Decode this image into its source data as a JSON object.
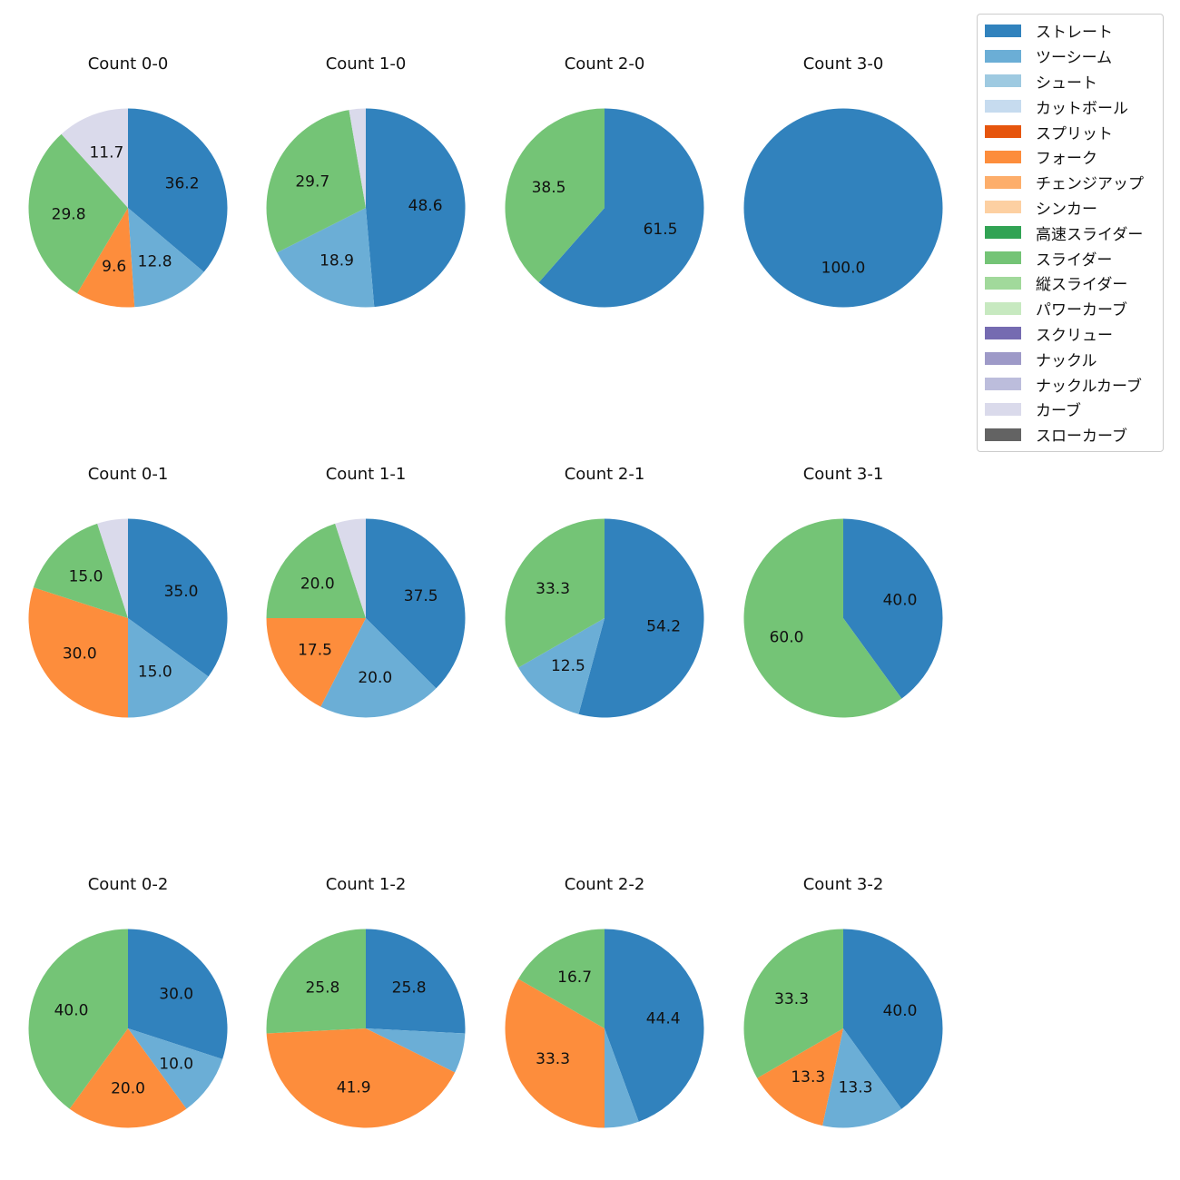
{
  "legend": {
    "items": [
      {
        "label": "ストレート",
        "color": "#3182bd"
      },
      {
        "label": "ツーシーム",
        "color": "#6baed6"
      },
      {
        "label": "シュート",
        "color": "#9ecae1"
      },
      {
        "label": "カットボール",
        "color": "#c6dbef"
      },
      {
        "label": "スプリット",
        "color": "#e6550d"
      },
      {
        "label": "フォーク",
        "color": "#fd8d3c"
      },
      {
        "label": "チェンジアップ",
        "color": "#fdae6b"
      },
      {
        "label": "シンカー",
        "color": "#fdd0a2"
      },
      {
        "label": "高速スライダー",
        "color": "#31a354"
      },
      {
        "label": "スライダー",
        "color": "#74c476"
      },
      {
        "label": "縦スライダー",
        "color": "#a1d99b"
      },
      {
        "label": "パワーカーブ",
        "color": "#c7e9c0"
      },
      {
        "label": "スクリュー",
        "color": "#756bb1"
      },
      {
        "label": "ナックル",
        "color": "#9e9ac8"
      },
      {
        "label": "ナックルカーブ",
        "color": "#bcbddc"
      },
      {
        "label": "カーブ",
        "color": "#dadaeb"
      },
      {
        "label": "スローカーブ",
        "color": "#636363"
      }
    ]
  },
  "chart_data": [
    {
      "type": "pie",
      "title": "Count 0-0",
      "slices": [
        {
          "name": "ストレート",
          "value": 36.2,
          "label": "36.2"
        },
        {
          "name": "ツーシーム",
          "value": 12.8,
          "label": "12.8"
        },
        {
          "name": "フォーク",
          "value": 9.6,
          "label": "9.6"
        },
        {
          "name": "スライダー",
          "value": 29.8,
          "label": "29.8"
        },
        {
          "name": "カーブ",
          "value": 11.7,
          "label": "11.7"
        }
      ]
    },
    {
      "type": "pie",
      "title": "Count 1-0",
      "slices": [
        {
          "name": "ストレート",
          "value": 48.6,
          "label": "48.6"
        },
        {
          "name": "ツーシーム",
          "value": 18.9,
          "label": "18.9"
        },
        {
          "name": "スライダー",
          "value": 29.7,
          "label": "29.7"
        },
        {
          "name": "カーブ",
          "value": 2.7,
          "label": ""
        }
      ]
    },
    {
      "type": "pie",
      "title": "Count 2-0",
      "slices": [
        {
          "name": "ストレート",
          "value": 61.5,
          "label": "61.5"
        },
        {
          "name": "スライダー",
          "value": 38.5,
          "label": "38.5"
        }
      ]
    },
    {
      "type": "pie",
      "title": "Count 3-0",
      "slices": [
        {
          "name": "ストレート",
          "value": 100.0,
          "label": "100.0"
        }
      ]
    },
    {
      "type": "pie",
      "title": "Count 0-1",
      "slices": [
        {
          "name": "ストレート",
          "value": 35.0,
          "label": "35.0"
        },
        {
          "name": "ツーシーム",
          "value": 15.0,
          "label": "15.0"
        },
        {
          "name": "フォーク",
          "value": 30.0,
          "label": "30.0"
        },
        {
          "name": "スライダー",
          "value": 15.0,
          "label": "15.0"
        },
        {
          "name": "カーブ",
          "value": 5.0,
          "label": ""
        }
      ]
    },
    {
      "type": "pie",
      "title": "Count 1-1",
      "slices": [
        {
          "name": "ストレート",
          "value": 37.5,
          "label": "37.5"
        },
        {
          "name": "ツーシーム",
          "value": 20.0,
          "label": "20.0"
        },
        {
          "name": "フォーク",
          "value": 17.5,
          "label": "17.5"
        },
        {
          "name": "スライダー",
          "value": 20.0,
          "label": "20.0"
        },
        {
          "name": "カーブ",
          "value": 5.0,
          "label": ""
        }
      ]
    },
    {
      "type": "pie",
      "title": "Count 2-1",
      "slices": [
        {
          "name": "ストレート",
          "value": 54.2,
          "label": "54.2"
        },
        {
          "name": "ツーシーム",
          "value": 12.5,
          "label": "12.5"
        },
        {
          "name": "スライダー",
          "value": 33.3,
          "label": "33.3"
        }
      ]
    },
    {
      "type": "pie",
      "title": "Count 3-1",
      "slices": [
        {
          "name": "ストレート",
          "value": 40.0,
          "label": "40.0"
        },
        {
          "name": "スライダー",
          "value": 60.0,
          "label": "60.0"
        }
      ]
    },
    {
      "type": "pie",
      "title": "Count 0-2",
      "slices": [
        {
          "name": "ストレート",
          "value": 30.0,
          "label": "30.0"
        },
        {
          "name": "ツーシーム",
          "value": 10.0,
          "label": "10.0"
        },
        {
          "name": "フォーク",
          "value": 20.0,
          "label": "20.0"
        },
        {
          "name": "スライダー",
          "value": 40.0,
          "label": "40.0"
        }
      ]
    },
    {
      "type": "pie",
      "title": "Count 1-2",
      "slices": [
        {
          "name": "ストレート",
          "value": 25.8,
          "label": "25.8"
        },
        {
          "name": "ツーシーム",
          "value": 6.5,
          "label": ""
        },
        {
          "name": "フォーク",
          "value": 41.9,
          "label": "41.9"
        },
        {
          "name": "スライダー",
          "value": 25.8,
          "label": "25.8"
        }
      ]
    },
    {
      "type": "pie",
      "title": "Count 2-2",
      "slices": [
        {
          "name": "ストレート",
          "value": 44.4,
          "label": "44.4"
        },
        {
          "name": "ツーシーム",
          "value": 5.6,
          "label": ""
        },
        {
          "name": "フォーク",
          "value": 33.3,
          "label": "33.3"
        },
        {
          "name": "スライダー",
          "value": 16.7,
          "label": "16.7"
        }
      ]
    },
    {
      "type": "pie",
      "title": "Count 3-2",
      "slices": [
        {
          "name": "ストレート",
          "value": 40.0,
          "label": "40.0"
        },
        {
          "name": "ツーシーム",
          "value": 13.3,
          "label": "13.3"
        },
        {
          "name": "フォーク",
          "value": 13.3,
          "label": "13.3"
        },
        {
          "name": "スライダー",
          "value": 33.3,
          "label": "33.3"
        }
      ]
    }
  ]
}
